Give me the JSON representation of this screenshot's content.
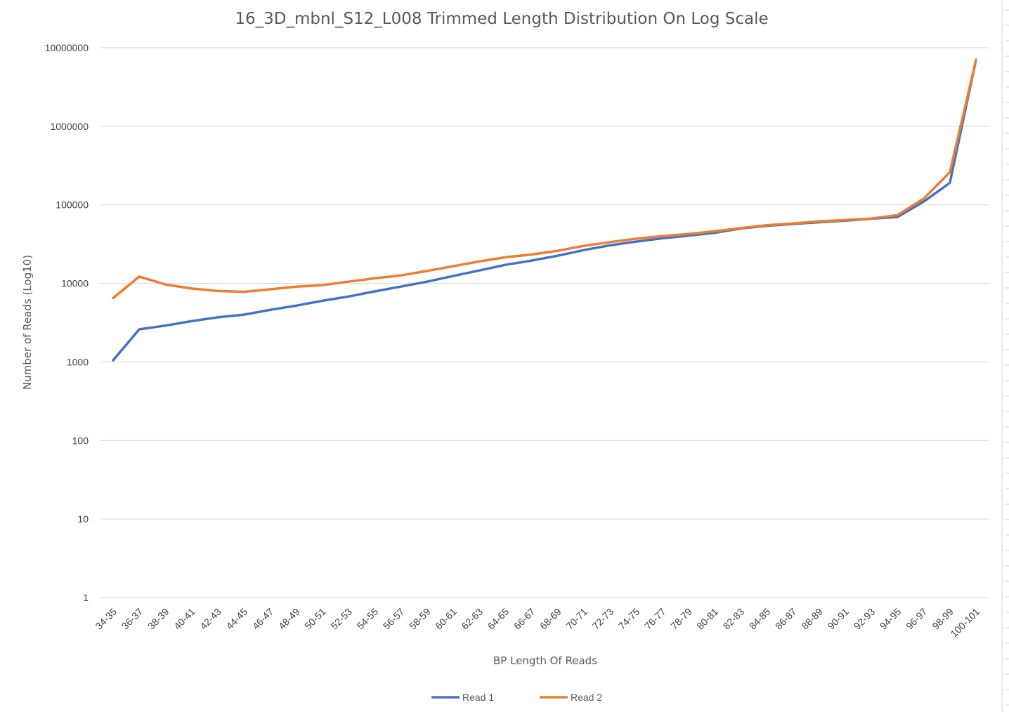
{
  "chart_data": {
    "type": "line",
    "title": "16_3D_mbnl_S12_L008 Trimmed Length Distribution On Log Scale",
    "xlabel": "BP Length Of Reads",
    "ylabel": "Number of Reads (Log10)",
    "yscale": "log",
    "ylim": [
      1,
      10000000
    ],
    "yticks": [
      "1",
      "10",
      "100",
      "1000",
      "10000",
      "100000",
      "1000000",
      "10000000"
    ],
    "grid": true,
    "legend_position": "bottom",
    "categories": [
      "34-35",
      "36-37",
      "38-39",
      "40-41",
      "42-43",
      "44-45",
      "46-47",
      "48-49",
      "50-51",
      "52-53",
      "54-55",
      "56-57",
      "58-59",
      "60-61",
      "62-63",
      "64-65",
      "66-67",
      "68-69",
      "70-71",
      "72-73",
      "74-75",
      "76-77",
      "78-79",
      "80-81",
      "82-83",
      "84-85",
      "86-87",
      "88-89",
      "90-91",
      "92-93",
      "94-95",
      "96-97",
      "98-99",
      "100-101"
    ],
    "series": [
      {
        "name": "Read 1",
        "color": "#4472C4",
        "values": [
          1050,
          2600,
          2900,
          3300,
          3700,
          4000,
          4600,
          5200,
          6000,
          6800,
          7900,
          9100,
          10500,
          12400,
          14600,
          17200,
          19500,
          22500,
          26500,
          30500,
          34000,
          37500,
          40500,
          44000,
          50000,
          54000,
          57000,
          60000,
          63000,
          66500,
          70000,
          110000,
          190000,
          7000000
        ]
      },
      {
        "name": "Read 2",
        "color": "#ED7D31",
        "values": [
          6500,
          12200,
          9700,
          8600,
          8000,
          7800,
          8400,
          9100,
          9500,
          10500,
          11600,
          12600,
          14400,
          16500,
          19000,
          21500,
          23300,
          26000,
          30000,
          33500,
          37000,
          40000,
          42500,
          46000,
          50500,
          55000,
          58000,
          61500,
          64000,
          67000,
          74000,
          120000,
          260000,
          7000000
        ]
      }
    ]
  }
}
